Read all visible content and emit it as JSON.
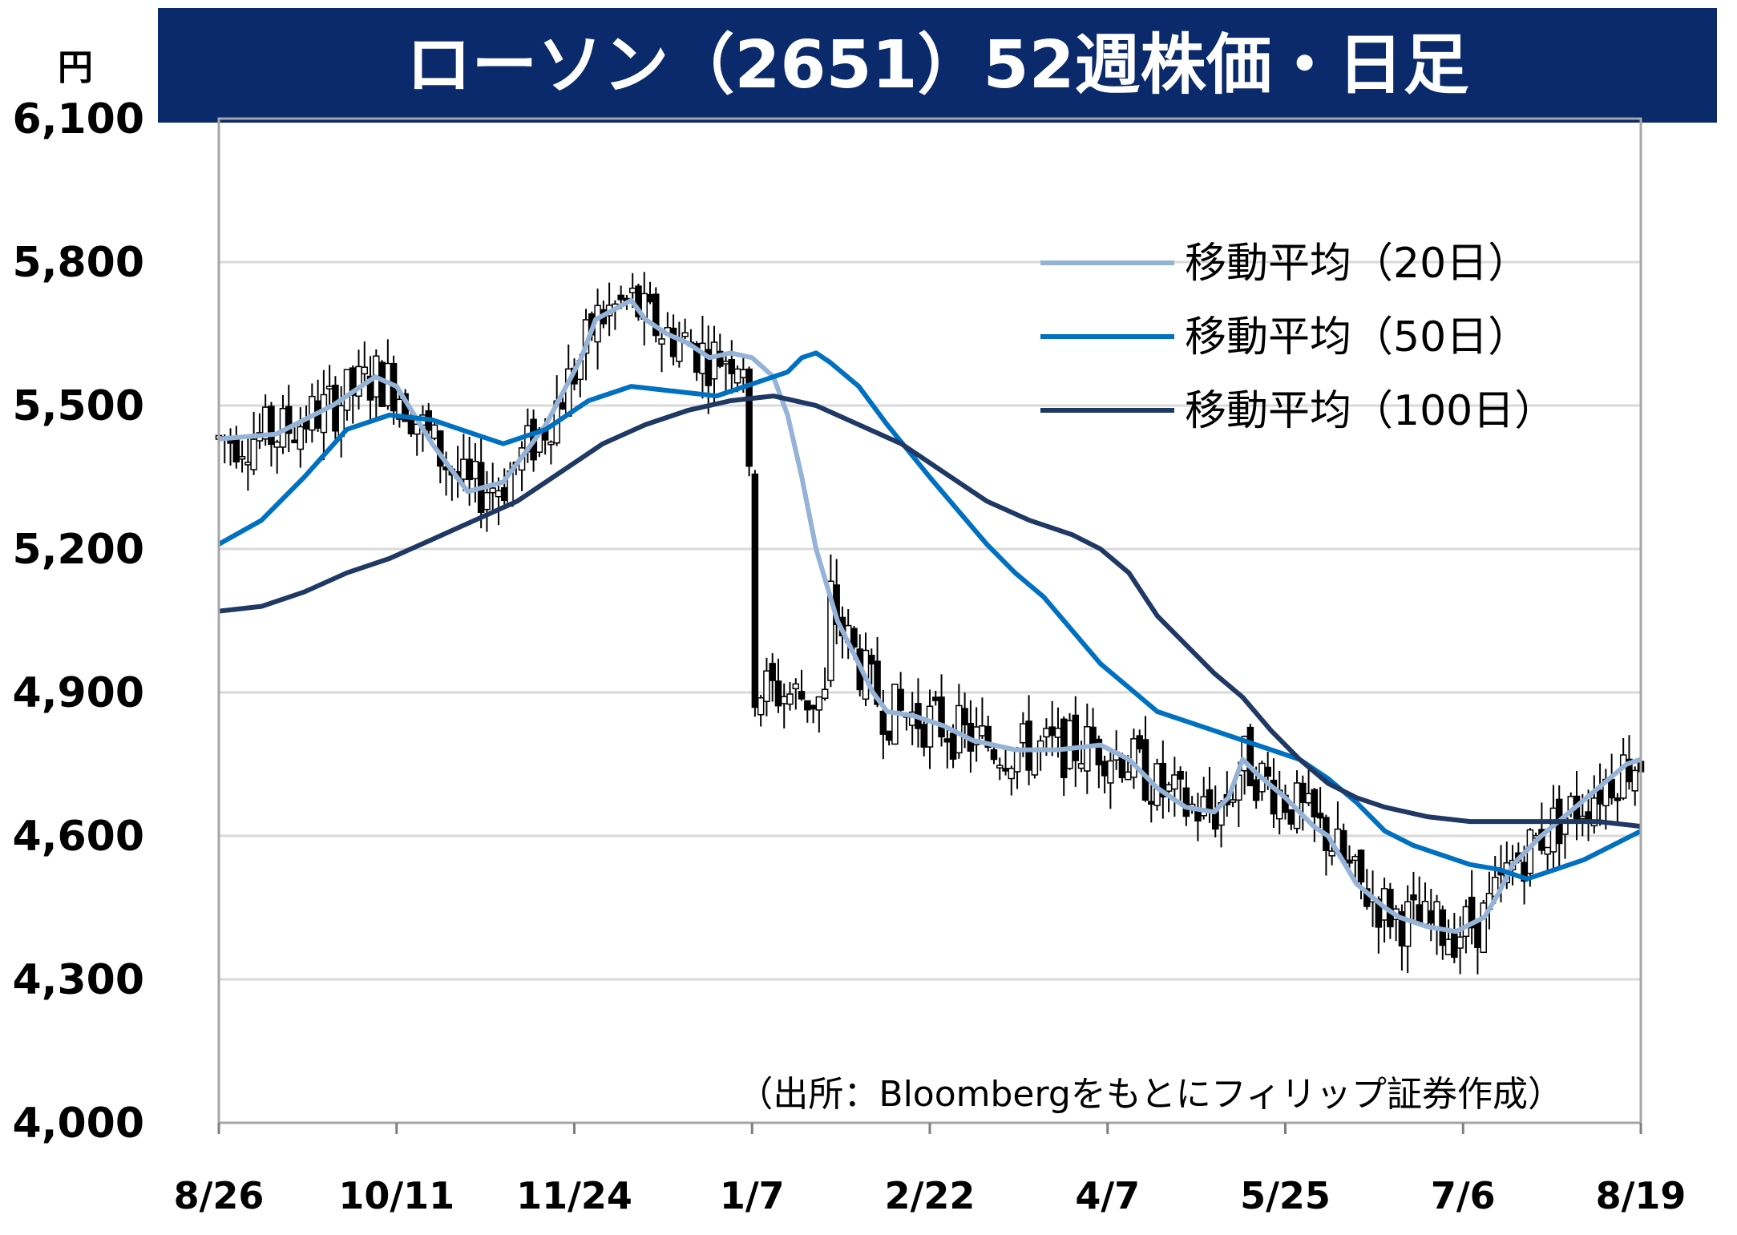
{
  "chart_data": {
    "type": "line",
    "title": "ローソン（2651）52週株価・日足",
    "yunit": "円",
    "ylim": [
      4000,
      6100
    ],
    "yticks": [
      "6,100",
      "5,800",
      "5,500",
      "5,200",
      "4,900",
      "4,600",
      "4,300",
      "4,000"
    ],
    "ytick_values": [
      6100,
      5800,
      5500,
      5200,
      4900,
      4600,
      4300,
      4000
    ],
    "xticks": [
      "8/26",
      "10/11",
      "11/24",
      "1/7",
      "2/22",
      "4/7",
      "5/25",
      "7/6",
      "8/19"
    ],
    "grid": true,
    "legend_position": "top-right",
    "source": "（出所：Bloombergをもとにフィリップ証券作成）",
    "series": [
      {
        "name": "移動平均（20日）",
        "color": "#95b3d7",
        "points": [
          [
            0,
            5430
          ],
          [
            0.04,
            5440
          ],
          [
            0.08,
            5500
          ],
          [
            0.11,
            5560
          ],
          [
            0.125,
            5540
          ],
          [
            0.15,
            5420
          ],
          [
            0.175,
            5320
          ],
          [
            0.2,
            5340
          ],
          [
            0.23,
            5460
          ],
          [
            0.255,
            5600
          ],
          [
            0.265,
            5680
          ],
          [
            0.29,
            5720
          ],
          [
            0.3,
            5680
          ],
          [
            0.315,
            5650
          ],
          [
            0.33,
            5630
          ],
          [
            0.345,
            5600
          ],
          [
            0.36,
            5610
          ],
          [
            0.375,
            5600
          ],
          [
            0.39,
            5560
          ],
          [
            0.4,
            5480
          ],
          [
            0.41,
            5350
          ],
          [
            0.42,
            5200
          ],
          [
            0.435,
            5050
          ],
          [
            0.45,
            4960
          ],
          [
            0.46,
            4900
          ],
          [
            0.47,
            4860
          ],
          [
            0.49,
            4850
          ],
          [
            0.51,
            4830
          ],
          [
            0.53,
            4800
          ],
          [
            0.56,
            4780
          ],
          [
            0.59,
            4780
          ],
          [
            0.62,
            4790
          ],
          [
            0.64,
            4760
          ],
          [
            0.66,
            4700
          ],
          [
            0.68,
            4660
          ],
          [
            0.7,
            4650
          ],
          [
            0.71,
            4680
          ],
          [
            0.72,
            4760
          ],
          [
            0.73,
            4730
          ],
          [
            0.75,
            4680
          ],
          [
            0.77,
            4620
          ],
          [
            0.78,
            4600
          ],
          [
            0.79,
            4550
          ],
          [
            0.8,
            4500
          ],
          [
            0.82,
            4450
          ],
          [
            0.83,
            4430
          ],
          [
            0.84,
            4420
          ],
          [
            0.85,
            4410
          ],
          [
            0.87,
            4400
          ],
          [
            0.89,
            4430
          ],
          [
            0.9,
            4480
          ],
          [
            0.91,
            4540
          ],
          [
            0.93,
            4600
          ],
          [
            0.95,
            4650
          ],
          [
            0.97,
            4700
          ],
          [
            0.99,
            4750
          ],
          [
            1.0,
            4760
          ]
        ]
      },
      {
        "name": "移動平均（50日）",
        "color": "#0070c0",
        "points": [
          [
            0,
            5210
          ],
          [
            0.03,
            5260
          ],
          [
            0.06,
            5350
          ],
          [
            0.09,
            5450
          ],
          [
            0.12,
            5480
          ],
          [
            0.15,
            5470
          ],
          [
            0.18,
            5440
          ],
          [
            0.2,
            5420
          ],
          [
            0.23,
            5450
          ],
          [
            0.26,
            5510
          ],
          [
            0.29,
            5540
          ],
          [
            0.32,
            5530
          ],
          [
            0.35,
            5520
          ],
          [
            0.38,
            5550
          ],
          [
            0.4,
            5570
          ],
          [
            0.41,
            5600
          ],
          [
            0.42,
            5610
          ],
          [
            0.43,
            5590
          ],
          [
            0.45,
            5540
          ],
          [
            0.47,
            5460
          ],
          [
            0.5,
            5350
          ],
          [
            0.52,
            5280
          ],
          [
            0.54,
            5210
          ],
          [
            0.56,
            5150
          ],
          [
            0.58,
            5100
          ],
          [
            0.6,
            5030
          ],
          [
            0.62,
            4960
          ],
          [
            0.64,
            4910
          ],
          [
            0.66,
            4860
          ],
          [
            0.7,
            4820
          ],
          [
            0.73,
            4790
          ],
          [
            0.76,
            4760
          ],
          [
            0.78,
            4720
          ],
          [
            0.8,
            4670
          ],
          [
            0.82,
            4610
          ],
          [
            0.84,
            4580
          ],
          [
            0.86,
            4560
          ],
          [
            0.88,
            4540
          ],
          [
            0.9,
            4530
          ],
          [
            0.92,
            4510
          ],
          [
            0.94,
            4530
          ],
          [
            0.96,
            4550
          ],
          [
            0.98,
            4580
          ],
          [
            1.0,
            4610
          ]
        ]
      },
      {
        "name": "移動平均（100日）",
        "color": "#1f3864",
        "points": [
          [
            0,
            5070
          ],
          [
            0.03,
            5080
          ],
          [
            0.06,
            5110
          ],
          [
            0.09,
            5150
          ],
          [
            0.12,
            5180
          ],
          [
            0.15,
            5220
          ],
          [
            0.18,
            5260
          ],
          [
            0.21,
            5300
          ],
          [
            0.24,
            5360
          ],
          [
            0.27,
            5420
          ],
          [
            0.3,
            5460
          ],
          [
            0.33,
            5490
          ],
          [
            0.36,
            5510
          ],
          [
            0.39,
            5520
          ],
          [
            0.42,
            5500
          ],
          [
            0.45,
            5460
          ],
          [
            0.48,
            5420
          ],
          [
            0.51,
            5360
          ],
          [
            0.54,
            5300
          ],
          [
            0.57,
            5260
          ],
          [
            0.6,
            5230
          ],
          [
            0.62,
            5200
          ],
          [
            0.64,
            5150
          ],
          [
            0.66,
            5060
          ],
          [
            0.68,
            5000
          ],
          [
            0.7,
            4940
          ],
          [
            0.72,
            4890
          ],
          [
            0.74,
            4820
          ],
          [
            0.76,
            4760
          ],
          [
            0.78,
            4710
          ],
          [
            0.8,
            4680
          ],
          [
            0.82,
            4660
          ],
          [
            0.85,
            4640
          ],
          [
            0.88,
            4630
          ],
          [
            0.91,
            4630
          ],
          [
            0.94,
            4630
          ],
          [
            0.97,
            4630
          ],
          [
            1.0,
            4620
          ]
        ]
      }
    ]
  }
}
